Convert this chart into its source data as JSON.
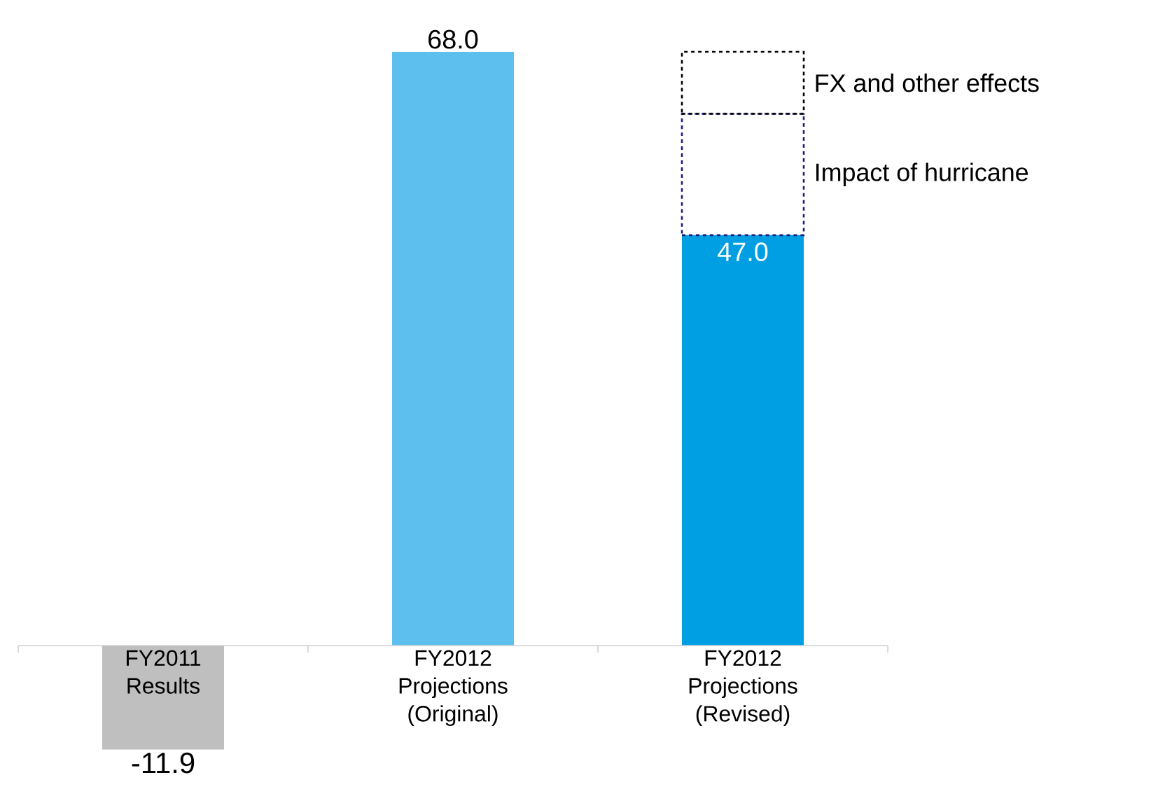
{
  "chart_data": {
    "type": "bar",
    "stacked": true,
    "categories": [
      "FY2011 Results",
      "FY2012 Projections (Original)",
      "FY2012 Projections (Revised)"
    ],
    "series": [
      {
        "values": [
          -11.9,
          68.0,
          47.0
        ],
        "colors": [
          "#bfbfbf",
          "#5cbfee",
          "#009fe3"
        ],
        "value_labels": [
          "-11.9",
          "68.0",
          "47.0"
        ]
      },
      {
        "name": "Impact of hurricane",
        "values": [
          null,
          null,
          13.9
        ],
        "color": "#1a1a80",
        "line_style": "dotted"
      },
      {
        "name": "FX and other effects",
        "values": [
          null,
          null,
          7.1
        ],
        "color": "#000000",
        "line_style": "dotted"
      }
    ]
  }
}
